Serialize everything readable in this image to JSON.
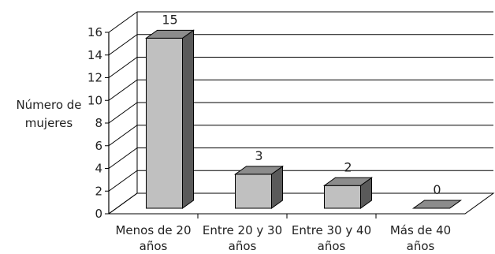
{
  "chart_data": {
    "type": "bar",
    "style": "3d",
    "title": "",
    "xlabel": "",
    "ylabel_lines": [
      "Número de",
      "mujeres"
    ],
    "ylim": [
      0,
      16
    ],
    "yticks": [
      0,
      2,
      4,
      6,
      8,
      10,
      12,
      14,
      16
    ],
    "grid": true,
    "legend": "none",
    "categories": [
      [
        "Menos de 20",
        "años"
      ],
      [
        "Entre 20 y 30",
        "años"
      ],
      [
        "Entre 30 y 40",
        "años"
      ],
      [
        "Más de 40",
        "años"
      ]
    ],
    "values": [
      15,
      3,
      2,
      0
    ],
    "data_labels": [
      "15",
      "3",
      "2",
      "0"
    ],
    "colors": {
      "bar_front": "#c0c0c0",
      "bar_top": "#8c8c8c",
      "bar_side": "#5a5a5a",
      "axis": "#000000",
      "grid": "#000000"
    }
  }
}
